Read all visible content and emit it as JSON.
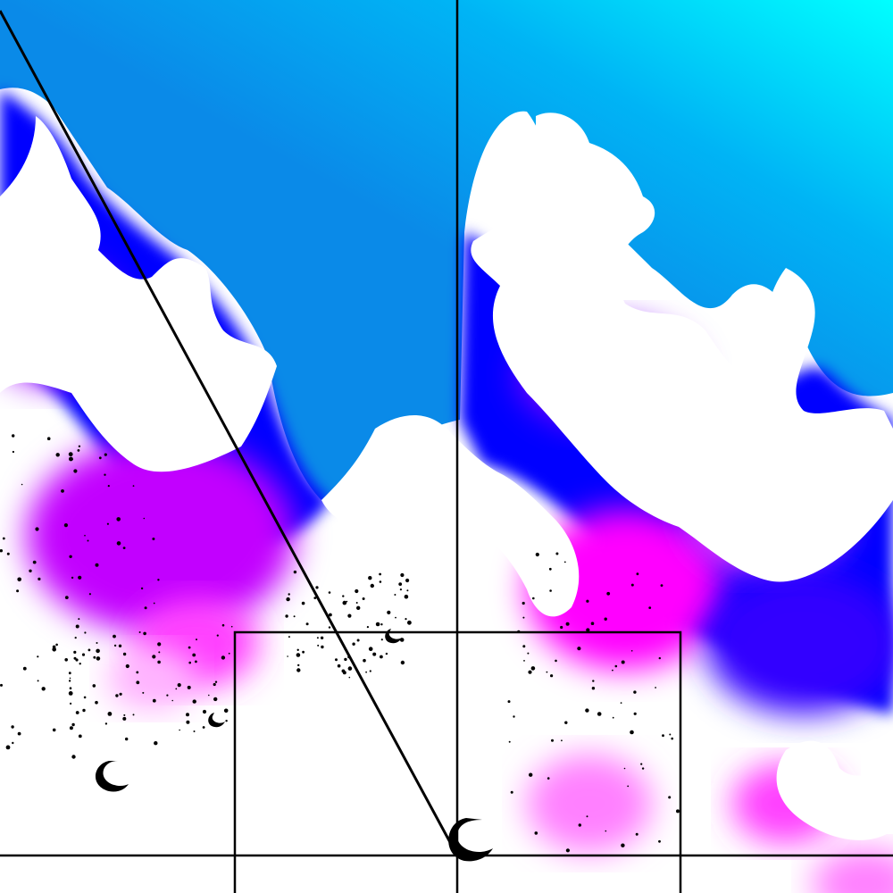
{
  "palette": {
    "sky_light": "#00ffff",
    "sky_mid": "#00b4f5",
    "sky_deep": "#0a8ae8",
    "blue": "#0000ff",
    "violet": "#7f00ff",
    "magenta": "#ff00ff",
    "pink_light": "#ffb3ff",
    "white": "#ffffff",
    "overlay_line": "#000000"
  },
  "overlay": {
    "lines": [
      "diagonal",
      "vertical",
      "horizontal"
    ],
    "shapes": [
      "zoom-box"
    ]
  }
}
